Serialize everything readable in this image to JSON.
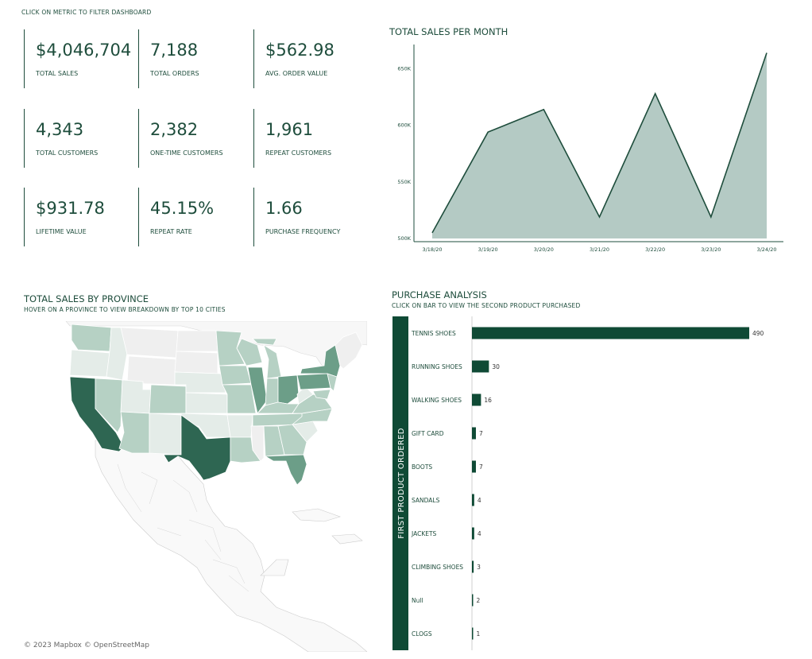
{
  "hint": "CLICK ON METRIC TO FILTER DASHBOARD",
  "kpis": [
    {
      "value": "$4,046,704",
      "label": "TOTAL SALES"
    },
    {
      "value": "7,188",
      "label": "TOTAL ORDERS"
    },
    {
      "value": "$562.98",
      "label": "AVG. ORDER VALUE"
    },
    {
      "value": "4,343",
      "label": "TOTAL CUSTOMERS"
    },
    {
      "value": "2,382",
      "label": "ONE-TIME CUSTOMERS"
    },
    {
      "value": "1,961",
      "label": "REPEAT CUSTOMERS"
    },
    {
      "value": "$931.78",
      "label": "LIFETIME VALUE"
    },
    {
      "value": "45.15%",
      "label": "REPEAT RATE"
    },
    {
      "value": "1.66",
      "label": "PURCHASE FREQUENCY"
    }
  ],
  "map": {
    "title": "TOTAL SALES BY PROVINCE",
    "subtitle": "HOVER ON A PROVINCE TO VIEW BREAKDOWN BY TOP 10 CITIES",
    "attribution": "© 2023 Mapbox © OpenStreetMap",
    "colors": {
      "high": "#2e6652",
      "mid": "#6c9e88",
      "low": "#b6d1c4",
      "lowest": "#e4ece8",
      "none": "#efefef"
    }
  },
  "bars": {
    "title": "PURCHASE ANALYSIS",
    "subtitle": "CLICK ON BAR TO VIEW THE SECOND PRODUCT PURCHASED"
  },
  "chart_data": [
    {
      "type": "area",
      "title": "TOTAL SALES PER MONTH",
      "x": [
        "3/18/20",
        "3/19/20",
        "3/20/20",
        "3/21/20",
        "3/22/20",
        "3/23/20",
        "3/24/20"
      ],
      "values": [
        505000,
        594000,
        614000,
        519000,
        628000,
        519000,
        664000
      ],
      "yticks": [
        "500K",
        "550K",
        "600K",
        "650K"
      ],
      "ylim": [
        500000,
        670000
      ],
      "color": "#1e4d3c",
      "fill": "#b4cac4",
      "grid": false
    },
    {
      "type": "bar",
      "orientation": "horizontal",
      "ylabel": "FIRST PRODUCT ORDERED",
      "categories": [
        "TENNIS SHOES",
        "RUNNING SHOES",
        "WALKING SHOES",
        "GIFT CARD",
        "BOOTS",
        "SANDALS",
        "JACKETS",
        "CLIMBING SHOES",
        "Null",
        "CLOGS"
      ],
      "values": [
        490,
        30,
        16,
        7,
        7,
        4,
        4,
        3,
        2,
        1
      ],
      "color": "#0f4a35"
    }
  ]
}
